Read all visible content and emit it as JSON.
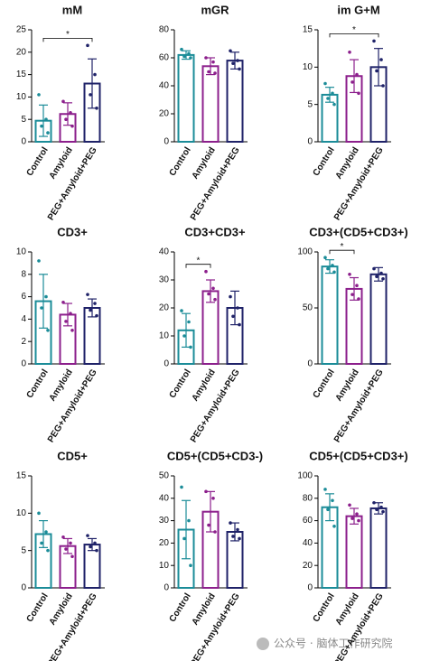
{
  "chart_data": [
    {
      "type": "bar",
      "title": "mM",
      "categories": [
        "Control",
        "Amyloid",
        "PEG+Amyloid+PEG"
      ],
      "colors": [
        "#1b8c98",
        "#8c1f8c",
        "#1f2268"
      ],
      "values": [
        4.7,
        6.2,
        13
      ],
      "errors": [
        3.5,
        2.5,
        5.5
      ],
      "points": [
        [
          10.5,
          5,
          3.5,
          2
        ],
        [
          9,
          6.5,
          5,
          3.5
        ],
        [
          21.5,
          15,
          10.5,
          7.5
        ]
      ],
      "ylim": [
        0,
        25
      ],
      "yticks": [
        0,
        5,
        10,
        15,
        20,
        25
      ],
      "significance": [
        {
          "pair": [
            0,
            2
          ],
          "label": "*"
        }
      ]
    },
    {
      "type": "bar",
      "title": "mGR",
      "categories": [
        "Control",
        "Amyloid",
        "PEG+Amyloid+PEG"
      ],
      "colors": [
        "#1b8c98",
        "#8c1f8c",
        "#1f2268"
      ],
      "values": [
        62,
        54,
        58
      ],
      "errors": [
        3,
        6,
        6
      ],
      "points": [
        [
          66,
          63,
          61,
          60
        ],
        [
          60,
          57,
          50,
          49
        ],
        [
          65,
          58,
          56,
          52
        ]
      ],
      "ylim": [
        0,
        80
      ],
      "yticks": [
        0,
        20,
        40,
        60,
        80
      ],
      "significance": []
    },
    {
      "type": "bar",
      "title": "im G+M",
      "categories": [
        "Control",
        "Amyloid",
        "PEG+Amyloid+PEG"
      ],
      "colors": [
        "#1b8c98",
        "#8c1f8c",
        "#1f2268"
      ],
      "values": [
        6.3,
        8.8,
        10
      ],
      "errors": [
        1,
        2.2,
        2.5
      ],
      "points": [
        [
          7.8,
          6.5,
          5.8,
          5
        ],
        [
          12,
          9,
          8,
          6.5
        ],
        [
          13.5,
          11,
          9.5,
          7.5
        ]
      ],
      "ylim": [
        0,
        15
      ],
      "yticks": [
        0,
        5,
        10,
        15
      ],
      "significance": [
        {
          "pair": [
            0,
            2
          ],
          "label": "*"
        }
      ]
    },
    {
      "type": "bar",
      "title": "CD3+",
      "categories": [
        "Control",
        "Amyloid",
        "PEG+Amyloid+PEG"
      ],
      "colors": [
        "#1b8c98",
        "#8c1f8c",
        "#1f2268"
      ],
      "values": [
        5.6,
        4.4,
        5.0
      ],
      "errors": [
        2.4,
        1,
        0.8
      ],
      "points": [
        [
          9.2,
          6,
          5,
          3
        ],
        [
          5.5,
          4.5,
          3.8,
          3
        ],
        [
          6.2,
          5.4,
          4.8,
          4.3
        ]
      ],
      "ylim": [
        0,
        10
      ],
      "yticks": [
        0,
        2,
        4,
        6,
        8,
        10
      ],
      "significance": []
    },
    {
      "type": "bar",
      "title": "CD3+CD3+",
      "categories": [
        "Control",
        "Amyloid",
        "PEG+Amyloid+PEG"
      ],
      "colors": [
        "#1b8c98",
        "#8c1f8c",
        "#1f2268"
      ],
      "values": [
        12,
        26,
        20
      ],
      "errors": [
        6,
        4,
        6
      ],
      "points": [
        [
          19,
          15,
          10,
          6
        ],
        [
          33,
          27,
          25,
          23
        ],
        [
          24,
          20,
          17,
          14
        ]
      ],
      "ylim": [
        0,
        40
      ],
      "yticks": [
        0,
        10,
        20,
        30,
        40
      ],
      "significance": [
        {
          "pair": [
            0,
            1
          ],
          "label": "*"
        }
      ]
    },
    {
      "type": "bar",
      "title": "CD3+(CD5+CD3+)",
      "categories": [
        "Control",
        "Amyloid",
        "PEG+Amyloid+PEG"
      ],
      "colors": [
        "#1b8c98",
        "#8c1f8c",
        "#1f2268"
      ],
      "values": [
        87,
        67,
        80
      ],
      "errors": [
        6,
        10,
        6
      ],
      "points": [
        [
          95,
          88,
          85,
          82
        ],
        [
          80,
          70,
          62,
          58
        ],
        [
          85,
          81,
          78,
          76
        ]
      ],
      "ylim": [
        0,
        100
      ],
      "yticks": [
        0,
        50,
        100
      ],
      "significance": [
        {
          "pair": [
            0,
            1
          ],
          "label": "*"
        }
      ]
    },
    {
      "type": "bar",
      "title": "CD5+",
      "categories": [
        "Control",
        "Amyloid",
        "PEG+Amyloid+PEG"
      ],
      "colors": [
        "#1b8c98",
        "#8c1f8c",
        "#1f2268"
      ],
      "values": [
        7.2,
        5.6,
        5.8
      ],
      "errors": [
        1.8,
        1,
        0.8
      ],
      "points": [
        [
          10,
          7.5,
          6,
          5
        ],
        [
          6.8,
          6,
          5.2,
          4.2
        ],
        [
          7,
          6,
          5.5,
          5
        ]
      ],
      "ylim": [
        0,
        15
      ],
      "yticks": [
        0,
        5,
        10,
        15
      ],
      "significance": []
    },
    {
      "type": "bar",
      "title": "CD5+(CD5+CD3-)",
      "categories": [
        "Control",
        "Amyloid",
        "PEG+Amyloid+PEG"
      ],
      "colors": [
        "#1b8c98",
        "#8c1f8c",
        "#1f2268"
      ],
      "values": [
        26,
        34,
        25
      ],
      "errors": [
        13,
        9,
        4
      ],
      "points": [
        [
          45,
          30,
          22,
          10
        ],
        [
          43,
          40,
          28,
          25
        ],
        [
          29,
          26,
          23,
          22
        ]
      ],
      "ylim": [
        0,
        50
      ],
      "yticks": [
        0,
        10,
        20,
        30,
        40,
        50
      ],
      "significance": []
    },
    {
      "type": "bar",
      "title": "CD5+(CD5+CD3+)",
      "categories": [
        "Control",
        "Amyloid",
        "PEG+Amyloid+PEG"
      ],
      "colors": [
        "#1b8c98",
        "#8c1f8c",
        "#1f2268"
      ],
      "values": [
        72,
        64,
        71
      ],
      "errors": [
        12,
        7,
        5
      ],
      "points": [
        [
          88,
          78,
          70,
          55
        ],
        [
          74,
          66,
          62,
          60
        ],
        [
          76,
          72,
          70,
          68
        ]
      ],
      "ylim": [
        0,
        100
      ],
      "yticks": [
        0,
        20,
        40,
        60,
        80,
        100
      ],
      "significance": []
    }
  ],
  "watermark": "公众号 · 脑体工作研究院"
}
